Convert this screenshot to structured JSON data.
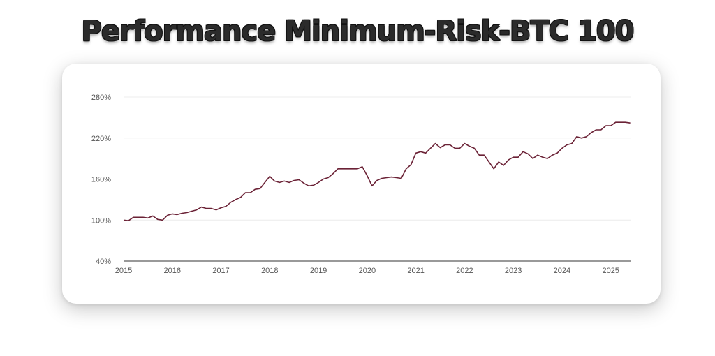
{
  "title": "Performance Minimum-Risk-BTC 100",
  "chart_data": {
    "type": "line",
    "title": "Performance Minimum-Risk-BTC 100",
    "xlabel": "",
    "ylabel": "",
    "y_ticks": [
      "40%",
      "100%",
      "160%",
      "220%",
      "280%"
    ],
    "y_tick_values": [
      40,
      100,
      160,
      220,
      280
    ],
    "x_ticks": [
      "2015",
      "2016",
      "2017",
      "2018",
      "2019",
      "2020",
      "2021",
      "2022",
      "2023",
      "2024",
      "2025"
    ],
    "x_tick_values": [
      2015,
      2016,
      2017,
      2018,
      2019,
      2020,
      2021,
      2022,
      2023,
      2024,
      2025
    ],
    "xlim": [
      2015,
      2025.42
    ],
    "ylim": [
      40,
      280
    ],
    "grid": true,
    "line_color": "#6b2236",
    "series": [
      {
        "x": [
          2015.0,
          2015.1,
          2015.2,
          2015.3,
          2015.4,
          2015.5,
          2015.6,
          2015.7,
          2015.8,
          2015.9,
          2016.0,
          2016.1,
          2016.2,
          2016.3,
          2016.4,
          2016.5,
          2016.6,
          2016.7,
          2016.8,
          2016.9,
          2017.0,
          2017.1,
          2017.2,
          2017.3,
          2017.4,
          2017.5,
          2017.6,
          2017.7,
          2017.8,
          2017.9,
          2018.0,
          2018.1,
          2018.2,
          2018.3,
          2018.4,
          2018.5,
          2018.6,
          2018.7,
          2018.8,
          2018.9,
          2019.0,
          2019.1,
          2019.2,
          2019.3,
          2019.4,
          2019.5,
          2019.6,
          2019.7,
          2019.8,
          2019.9,
          2020.0,
          2020.1,
          2020.2,
          2020.3,
          2020.4,
          2020.5,
          2020.6,
          2020.7,
          2020.8,
          2020.9,
          2021.0,
          2021.1,
          2021.2,
          2021.3,
          2021.4,
          2021.5,
          2021.6,
          2021.7,
          2021.8,
          2021.9,
          2022.0,
          2022.1,
          2022.2,
          2022.3,
          2022.4,
          2022.5,
          2022.6,
          2022.7,
          2022.8,
          2022.9,
          2023.0,
          2023.1,
          2023.2,
          2023.3,
          2023.4,
          2023.5,
          2023.6,
          2023.7,
          2023.8,
          2023.9,
          2024.0,
          2024.1,
          2024.2,
          2024.3,
          2024.4,
          2024.5,
          2024.6,
          2024.7,
          2024.8,
          2024.9,
          2025.0,
          2025.1,
          2025.2,
          2025.3,
          2025.4
        ],
        "y": [
          100,
          99,
          104,
          104,
          104,
          103,
          106,
          101,
          100,
          107,
          109,
          108,
          110,
          111,
          113,
          115,
          119,
          117,
          117,
          115,
          118,
          120,
          126,
          130,
          133,
          140,
          140,
          145,
          146,
          155,
          164,
          157,
          155,
          157,
          155,
          158,
          159,
          154,
          150,
          151,
          155,
          160,
          162,
          168,
          175,
          175,
          175,
          175,
          175,
          178,
          165,
          150,
          158,
          161,
          162,
          163,
          162,
          161,
          175,
          181,
          198,
          200,
          198,
          205,
          212,
          206,
          210,
          210,
          205,
          205,
          212,
          208,
          205,
          195,
          195,
          185,
          175,
          185,
          180,
          188,
          192,
          192,
          200,
          197,
          190,
          195,
          192,
          190,
          195,
          198,
          205,
          210,
          212,
          222,
          220,
          222,
          228,
          232,
          232,
          238,
          238,
          243,
          243,
          243,
          242
        ]
      }
    ]
  }
}
